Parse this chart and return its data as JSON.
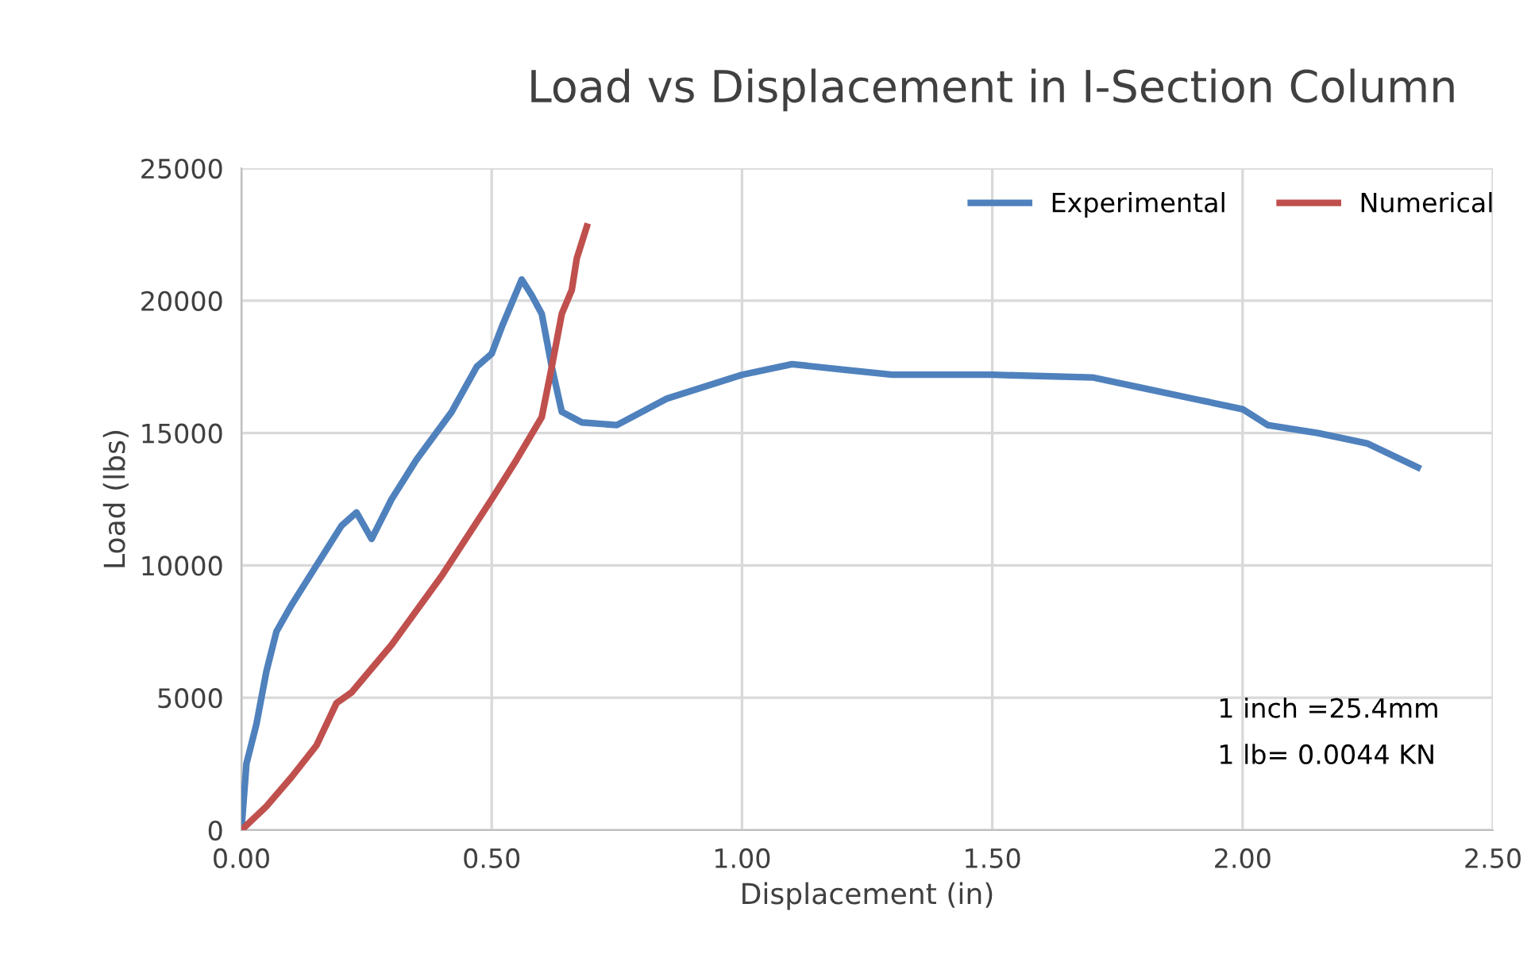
{
  "chart_data": {
    "type": "line",
    "title": "Load vs Displacement in I-Section Column",
    "xlabel": "Displacement (in)",
    "ylabel": "Load (lbs)",
    "series": [
      {
        "name": "Experimental",
        "color": "#4f81bd",
        "x": [
          0,
          0.01,
          0.03,
          0.05,
          0.07,
          0.1,
          0.15,
          0.2,
          0.23,
          0.26,
          0.3,
          0.35,
          0.42,
          0.47,
          0.5,
          0.52,
          0.56,
          0.58,
          0.6,
          0.62,
          0.64,
          0.68,
          0.75,
          0.85,
          1.0,
          1.1,
          1.2,
          1.3,
          1.5,
          1.7,
          1.8,
          1.9,
          2.0,
          2.05,
          2.15,
          2.25,
          2.35
        ],
        "values": [
          0,
          2500,
          4000,
          6000,
          7500,
          8500,
          10000,
          11500,
          12000,
          11000,
          12500,
          14000,
          15800,
          17500,
          18000,
          19000,
          20800,
          20200,
          19500,
          17500,
          15800,
          15400,
          15300,
          16300,
          17200,
          17600,
          17400,
          17200,
          17200,
          17100,
          16700,
          16300,
          15900,
          15300,
          15000,
          14600,
          13700
        ]
      },
      {
        "name": "Numerical",
        "color": "#c0504d",
        "x": [
          0,
          0.05,
          0.1,
          0.15,
          0.19,
          0.22,
          0.3,
          0.4,
          0.5,
          0.55,
          0.6,
          0.62,
          0.64,
          0.66,
          0.67,
          0.69
        ],
        "values": [
          0,
          900,
          2000,
          3200,
          4800,
          5200,
          7000,
          9600,
          12500,
          14000,
          15600,
          17500,
          19500,
          20400,
          21600,
          22800
        ]
      }
    ],
    "xlim": [
      0,
      2.5
    ],
    "xticks": [
      {
        "value": 0,
        "label": "0.00"
      },
      {
        "value": 0.5,
        "label": "0.50"
      },
      {
        "value": 1.0,
        "label": "1.00"
      },
      {
        "value": 1.5,
        "label": "1.50"
      },
      {
        "value": 2.0,
        "label": "2.00"
      },
      {
        "value": 2.5,
        "label": "2.50"
      }
    ],
    "ylim": [
      0,
      25000
    ],
    "yticks": [
      0,
      5000,
      10000,
      15000,
      20000,
      25000
    ],
    "grid": true,
    "legend": "top right",
    "marker": "none",
    "line_style": "solid",
    "annotations": [
      "1 inch =25.4mm",
      "1 lb= 0.0044 KN"
    ]
  }
}
